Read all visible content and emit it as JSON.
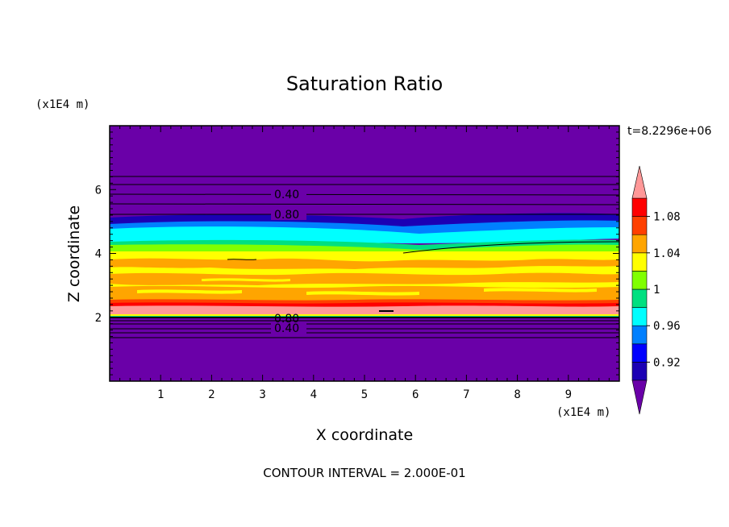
{
  "chart_data": {
    "type": "contour",
    "title": "Saturation Ratio",
    "xlabel": "X coordinate",
    "ylabel": "Z coordinate",
    "x_units": "(x1E4 m)",
    "y_units": "(x1E4 m)",
    "x_ticks": [
      "1",
      "2",
      "3",
      "4",
      "5",
      "6",
      "7",
      "8",
      "9"
    ],
    "y_ticks": [
      "2",
      "4",
      "6"
    ],
    "xlim": [
      0,
      10
    ],
    "ylim": [
      0,
      8
    ],
    "time_label": "t=8.2296e+06",
    "contour_interval_label": "CONTOUR INTERVAL = 2.000E-01",
    "contour_labels": [
      "0.40",
      "0.80",
      "0.80",
      "0.40"
    ],
    "colorbar": {
      "levels": [
        0.9,
        0.92,
        0.94,
        0.96,
        0.98,
        1.0,
        1.02,
        1.04,
        1.06,
        1.08,
        1.1
      ],
      "tick_labels": [
        "1.08",
        "1.04",
        "1",
        "0.96",
        "0.92"
      ],
      "colors": [
        "#6a00a8",
        "#1c00b4",
        "#0000ff",
        "#0080ff",
        "#00ffff",
        "#00e080",
        "#80ff00",
        "#ffff00",
        "#ffa500",
        "#ff4000",
        "#ff0000",
        "#ff9898"
      ]
    },
    "bands": [
      {
        "from": 0.0,
        "to": 1.9,
        "value": "< 0.90"
      },
      {
        "from": 1.9,
        "to": 2.05,
        "value": "0.98 - 1.02"
      },
      {
        "from": 2.05,
        "to": 2.5,
        "value": "1.06 - >1.10"
      },
      {
        "from": 2.5,
        "to": 4.0,
        "value": "1.02 - 1.08"
      },
      {
        "from": 4.0,
        "to": 4.4,
        "value": "0.98 - 1.04"
      },
      {
        "from": 4.4,
        "to": 4.9,
        "value": "0.94 - 0.98"
      },
      {
        "from": 4.9,
        "to": 5.3,
        "value": "0.90 - 0.94"
      },
      {
        "from": 5.3,
        "to": 8.0,
        "value": "< 0.90"
      }
    ]
  }
}
